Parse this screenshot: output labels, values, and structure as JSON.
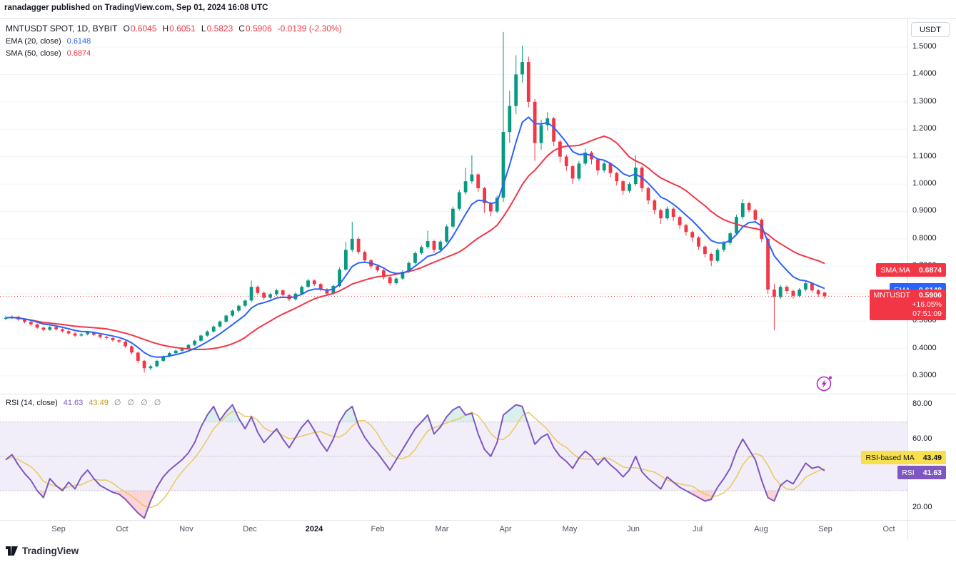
{
  "attribution": "ranadagger published on TradingView.com, Sep 01, 2024 16:08 UTC",
  "header": {
    "symbol_title": "MNTUSDT SPOT, 1D, BYBIT",
    "ohlc": {
      "open_label": "O",
      "open": "0.6045",
      "high_label": "H",
      "high": "0.6051",
      "low_label": "L",
      "low": "0.5823",
      "close_label": "C",
      "close": "0.5906",
      "change": "-0.0139 (-2.30%)"
    },
    "ema_label": "EMA (20, close)",
    "ema_value": "0.6148",
    "sma_label": "SMA (50, close)",
    "sma_value": "0.6874"
  },
  "rsi_header": {
    "label": "RSI (14, close)",
    "rsi_value": "41.63",
    "ma_value": "43.49",
    "empties": "∅ ∅ ∅ ∅"
  },
  "price_axis": {
    "currency": "USDT"
  },
  "time_axis": {
    "labels": [
      "Sep",
      "Oct",
      "Nov",
      "Dec",
      "2024",
      "Feb",
      "Mar",
      "Apr",
      "May",
      "Jun",
      "Jul",
      "Aug",
      "Sep",
      "Oct"
    ],
    "bold_label": "2024"
  },
  "badges": {
    "sma_badge": {
      "label": "SMA:MA",
      "value": "0.6874"
    },
    "ema_badge": {
      "label": "EMA",
      "value": "0.6148"
    },
    "symbol_badge": {
      "label": "MNTUSDT",
      "price": "0.5906",
      "change": "+16.05%",
      "countdown": "07:51:09"
    },
    "rsi_ma_badge": {
      "label": "RSI-based MA",
      "value": "43.49"
    },
    "rsi_badge": {
      "label": "RSI",
      "value": "41.63"
    }
  },
  "footer": {
    "brand": "TradingView"
  },
  "colors": {
    "up": "#089981",
    "down": "#f23645",
    "ema": "#2962ff",
    "sma": "#f23645",
    "rsi": "#7e57c2",
    "rsi_ma": "#e8c95c",
    "rsi_ma_text": "#c09a1c",
    "band_fill": "rgba(126,87,194,0.10)",
    "oversold_fill": "rgba(242,54,69,0.22)",
    "overbought_fill": "rgba(8,153,129,0.15)",
    "sma_badge_bg": "#f23645",
    "ema_badge_bg": "#2962ff",
    "symbol_badge_bg": "#f23645",
    "rsi_ma_badge_bg": "#f7df4e",
    "rsi_badge_bg": "#7e57c2",
    "trade_icon": "#b32cc6",
    "last_price_line": "#f23645",
    "grid": "#f0f3fa"
  },
  "chart_data": {
    "type": "candlestick",
    "title": "MNTUSDT SPOT, 1D, BYBIT",
    "price_range": [
      0.235,
      1.604
    ],
    "price_ticks": [
      1.5,
      1.4,
      1.3,
      1.2,
      1.1,
      1.0,
      0.9,
      0.8,
      0.7,
      0.6,
      0.5,
      0.4,
      0.3
    ],
    "last_price": 0.5906,
    "ema20_value": 0.6148,
    "sma50_value": 0.6874,
    "candles": [
      [
        0.508,
        0.519,
        0.503,
        0.512
      ],
      [
        0.512,
        0.521,
        0.507,
        0.516
      ],
      [
        0.516,
        0.519,
        0.501,
        0.506
      ],
      [
        0.506,
        0.51,
        0.492,
        0.497
      ],
      [
        0.497,
        0.501,
        0.483,
        0.488
      ],
      [
        0.488,
        0.491,
        0.471,
        0.476
      ],
      [
        0.476,
        0.48,
        0.462,
        0.468
      ],
      [
        0.468,
        0.483,
        0.464,
        0.478
      ],
      [
        0.478,
        0.482,
        0.465,
        0.47
      ],
      [
        0.47,
        0.474,
        0.458,
        0.463
      ],
      [
        0.463,
        0.467,
        0.45,
        0.455
      ],
      [
        0.455,
        0.459,
        0.442,
        0.447
      ],
      [
        0.447,
        0.456,
        0.443,
        0.452
      ],
      [
        0.452,
        0.464,
        0.448,
        0.459
      ],
      [
        0.459,
        0.462,
        0.445,
        0.45
      ],
      [
        0.45,
        0.454,
        0.437,
        0.442
      ],
      [
        0.442,
        0.446,
        0.433,
        0.438
      ],
      [
        0.438,
        0.441,
        0.425,
        0.43
      ],
      [
        0.43,
        0.434,
        0.42,
        0.425
      ],
      [
        0.425,
        0.428,
        0.402,
        0.408
      ],
      [
        0.408,
        0.411,
        0.378,
        0.385
      ],
      [
        0.385,
        0.388,
        0.347,
        0.355
      ],
      [
        0.355,
        0.358,
        0.312,
        0.328
      ],
      [
        0.328,
        0.341,
        0.32,
        0.335
      ],
      [
        0.335,
        0.359,
        0.331,
        0.355
      ],
      [
        0.355,
        0.376,
        0.351,
        0.372
      ],
      [
        0.372,
        0.387,
        0.368,
        0.383
      ],
      [
        0.383,
        0.396,
        0.379,
        0.392
      ],
      [
        0.392,
        0.405,
        0.388,
        0.401
      ],
      [
        0.401,
        0.417,
        0.397,
        0.413
      ],
      [
        0.413,
        0.432,
        0.409,
        0.428
      ],
      [
        0.428,
        0.451,
        0.424,
        0.447
      ],
      [
        0.447,
        0.466,
        0.443,
        0.462
      ],
      [
        0.462,
        0.484,
        0.458,
        0.48
      ],
      [
        0.48,
        0.502,
        0.476,
        0.498
      ],
      [
        0.498,
        0.524,
        0.494,
        0.52
      ],
      [
        0.52,
        0.542,
        0.515,
        0.538
      ],
      [
        0.538,
        0.56,
        0.532,
        0.556
      ],
      [
        0.556,
        0.579,
        0.55,
        0.575
      ],
      [
        0.575,
        0.648,
        0.57,
        0.625
      ],
      [
        0.625,
        0.63,
        0.596,
        0.603
      ],
      [
        0.603,
        0.608,
        0.578,
        0.585
      ],
      [
        0.585,
        0.603,
        0.58,
        0.598
      ],
      [
        0.598,
        0.618,
        0.592,
        0.612
      ],
      [
        0.612,
        0.616,
        0.588,
        0.595
      ],
      [
        0.595,
        0.599,
        0.572,
        0.58
      ],
      [
        0.58,
        0.605,
        0.575,
        0.6
      ],
      [
        0.6,
        0.63,
        0.595,
        0.625
      ],
      [
        0.625,
        0.655,
        0.62,
        0.648
      ],
      [
        0.648,
        0.652,
        0.628,
        0.635
      ],
      [
        0.635,
        0.639,
        0.609,
        0.616
      ],
      [
        0.616,
        0.62,
        0.592,
        0.6
      ],
      [
        0.6,
        0.634,
        0.595,
        0.628
      ],
      [
        0.628,
        0.696,
        0.623,
        0.688
      ],
      [
        0.688,
        0.79,
        0.683,
        0.76
      ],
      [
        0.76,
        0.862,
        0.752,
        0.8
      ],
      [
        0.8,
        0.806,
        0.744,
        0.752
      ],
      [
        0.752,
        0.757,
        0.714,
        0.722
      ],
      [
        0.722,
        0.727,
        0.692,
        0.7
      ],
      [
        0.7,
        0.705,
        0.678,
        0.685
      ],
      [
        0.685,
        0.69,
        0.652,
        0.66
      ],
      [
        0.66,
        0.665,
        0.63,
        0.638
      ],
      [
        0.638,
        0.66,
        0.633,
        0.655
      ],
      [
        0.655,
        0.686,
        0.65,
        0.68
      ],
      [
        0.68,
        0.718,
        0.675,
        0.712
      ],
      [
        0.712,
        0.754,
        0.707,
        0.748
      ],
      [
        0.748,
        0.776,
        0.742,
        0.77
      ],
      [
        0.77,
        0.83,
        0.764,
        0.792
      ],
      [
        0.792,
        0.797,
        0.75,
        0.76
      ],
      [
        0.76,
        0.796,
        0.754,
        0.79
      ],
      [
        0.79,
        0.852,
        0.784,
        0.845
      ],
      [
        0.845,
        0.918,
        0.838,
        0.91
      ],
      [
        0.91,
        0.979,
        0.903,
        0.97
      ],
      [
        0.97,
        1.06,
        0.962,
        1.01
      ],
      [
        1.01,
        1.105,
        1.002,
        1.035
      ],
      [
        1.035,
        1.04,
        0.972,
        0.985
      ],
      [
        0.985,
        0.99,
        0.895,
        0.93
      ],
      [
        0.93,
        0.936,
        0.882,
        0.9
      ],
      [
        0.9,
        0.958,
        0.893,
        0.95
      ],
      [
        0.95,
        1.555,
        0.935,
        1.19
      ],
      [
        1.19,
        1.34,
        1.15,
        1.285
      ],
      [
        1.285,
        1.47,
        1.255,
        1.4
      ],
      [
        1.4,
        1.505,
        1.37,
        1.445
      ],
      [
        1.445,
        1.465,
        1.28,
        1.3
      ],
      [
        1.3,
        1.31,
        1.085,
        1.15
      ],
      [
        1.15,
        1.235,
        1.125,
        1.215
      ],
      [
        1.215,
        1.262,
        1.195,
        1.24
      ],
      [
        1.24,
        1.245,
        1.138,
        1.155
      ],
      [
        1.155,
        1.162,
        1.078,
        1.1
      ],
      [
        1.1,
        1.108,
        1.048,
        1.065
      ],
      [
        1.065,
        1.07,
        1.0,
        1.02
      ],
      [
        1.02,
        1.085,
        1.012,
        1.075
      ],
      [
        1.075,
        1.13,
        1.068,
        1.115
      ],
      [
        1.115,
        1.12,
        1.072,
        1.09
      ],
      [
        1.09,
        1.095,
        1.032,
        1.05
      ],
      [
        1.05,
        1.085,
        1.042,
        1.075
      ],
      [
        1.075,
        1.08,
        1.025,
        1.04
      ],
      [
        1.04,
        1.045,
        0.995,
        1.01
      ],
      [
        1.01,
        1.015,
        0.96,
        0.975
      ],
      [
        0.975,
        1.008,
        0.968,
        1.0
      ],
      [
        1.0,
        1.105,
        0.992,
        1.06
      ],
      [
        1.06,
        1.065,
        0.972,
        0.985
      ],
      [
        0.985,
        0.99,
        0.926,
        0.94
      ],
      [
        0.94,
        0.945,
        0.89,
        0.905
      ],
      [
        0.905,
        0.91,
        0.855,
        0.875
      ],
      [
        0.875,
        0.918,
        0.868,
        0.91
      ],
      [
        0.91,
        0.915,
        0.866,
        0.88
      ],
      [
        0.88,
        0.885,
        0.836,
        0.85
      ],
      [
        0.85,
        0.855,
        0.812,
        0.825
      ],
      [
        0.825,
        0.83,
        0.79,
        0.805
      ],
      [
        0.805,
        0.81,
        0.76,
        0.772
      ],
      [
        0.772,
        0.777,
        0.732,
        0.745
      ],
      [
        0.745,
        0.75,
        0.7,
        0.72
      ],
      [
        0.72,
        0.766,
        0.713,
        0.76
      ],
      [
        0.76,
        0.792,
        0.753,
        0.785
      ],
      [
        0.785,
        0.827,
        0.778,
        0.82
      ],
      [
        0.82,
        0.888,
        0.813,
        0.88
      ],
      [
        0.88,
        0.945,
        0.872,
        0.93
      ],
      [
        0.93,
        0.936,
        0.896,
        0.905
      ],
      [
        0.905,
        0.91,
        0.858,
        0.87
      ],
      [
        0.87,
        0.875,
        0.788,
        0.8
      ],
      [
        0.8,
        0.805,
        0.6,
        0.615
      ],
      [
        0.615,
        0.636,
        0.466,
        0.588
      ],
      [
        0.588,
        0.632,
        0.58,
        0.625
      ],
      [
        0.625,
        0.63,
        0.6,
        0.61
      ],
      [
        0.61,
        0.615,
        0.582,
        0.592
      ],
      [
        0.592,
        0.62,
        0.586,
        0.615
      ],
      [
        0.615,
        0.645,
        0.608,
        0.638
      ],
      [
        0.638,
        0.642,
        0.604,
        0.612
      ],
      [
        0.612,
        0.617,
        0.588,
        0.598
      ],
      [
        0.6045,
        0.6051,
        0.5823,
        0.5906
      ]
    ],
    "rsi": {
      "range": [
        13,
        86
      ],
      "ticks": [
        80,
        60,
        40,
        20
      ],
      "upper": 70,
      "mid": 50,
      "lower": 30,
      "last": 41.63,
      "ma_last": 43.49,
      "values": [
        48,
        51,
        45,
        40,
        36,
        30,
        26,
        37,
        33,
        30,
        35,
        31,
        38,
        42,
        37,
        33,
        31,
        29,
        28,
        25,
        21,
        17,
        14,
        24,
        32,
        38,
        42,
        45,
        48,
        52,
        58,
        67,
        74,
        79,
        71,
        76,
        80,
        72,
        66,
        73,
        64,
        58,
        62,
        66,
        60,
        55,
        61,
        67,
        71,
        65,
        58,
        53,
        60,
        70,
        76,
        79,
        68,
        61,
        56,
        52,
        47,
        42,
        48,
        54,
        60,
        66,
        70,
        74,
        63,
        67,
        73,
        77,
        79,
        74,
        75,
        63,
        54,
        50,
        58,
        74,
        77,
        80,
        79,
        68,
        57,
        61,
        63,
        55,
        50,
        47,
        43,
        49,
        53,
        50,
        45,
        49,
        45,
        42,
        38,
        42,
        50,
        41,
        37,
        34,
        31,
        38,
        35,
        32,
        30,
        28,
        26,
        24,
        25,
        32,
        37,
        43,
        53,
        60,
        54,
        48,
        36,
        26,
        24,
        33,
        36,
        34,
        40,
        46,
        43,
        44,
        41.63
      ]
    }
  }
}
